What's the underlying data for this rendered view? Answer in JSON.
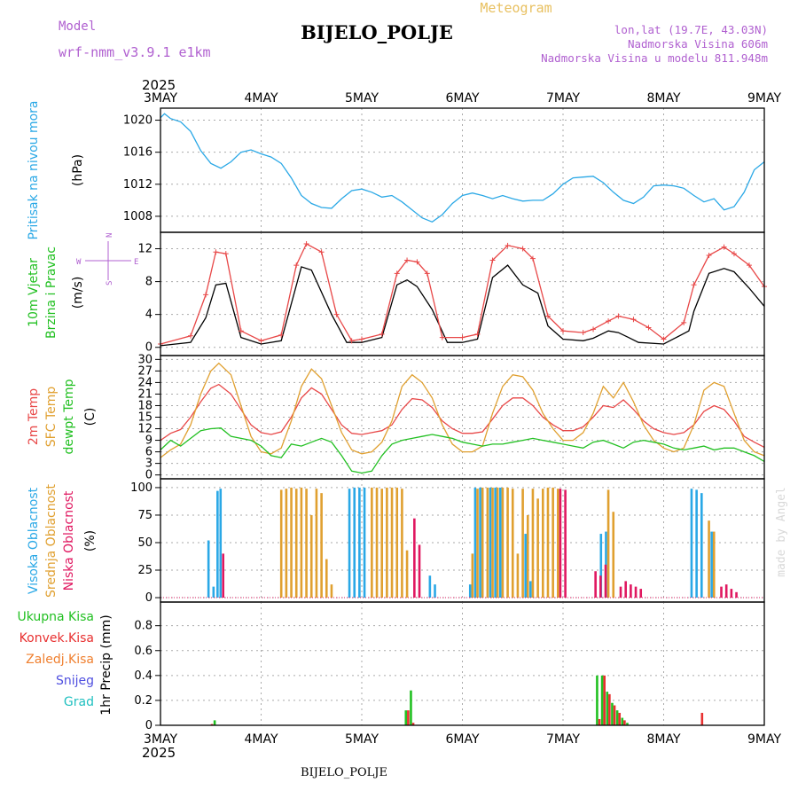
{
  "header": {
    "model_label": "Model",
    "model_name": "wrf-nmm_v3.9.1  e1km",
    "station": "BIJELO_POLJE",
    "meteogram_label": "Meteogram",
    "coords": "lon,lat (19.7E, 43.03N)",
    "elevation": "Nadmorska Visina 606m",
    "model_elevation": "Nadmorska Visina u modelu 811.948m"
  },
  "footer": {
    "station": "BIJELO_POLJE",
    "credit": "made by Angel"
  },
  "time_axis": {
    "year": "2025",
    "labels": [
      "3MAY",
      "4MAY",
      "5MAY",
      "6MAY",
      "7MAY",
      "8MAY",
      "9MAY"
    ],
    "start_day": 3,
    "end_day": 9
  },
  "wind_compass": {
    "w": "W",
    "e": "E",
    "n": "N",
    "s": "S"
  },
  "colors": {
    "pressure": "#2aa8e6",
    "wind_speed": "#000000",
    "wind_gust": "#e84848",
    "temp_2m": "#e84848",
    "temp_sfc": "#e0a030",
    "dewpoint": "#22c022",
    "cloud_high": "#2aa8e6",
    "cloud_mid": "#e0a030",
    "cloud_low": "#e01860",
    "precip_total": "#22c022",
    "precip_conv": "#e83030",
    "precip_frozen": "#f08030",
    "precip_snow": "#5050e0",
    "precip_hail": "#20c0c0"
  },
  "chart_data": [
    {
      "type": "line",
      "panel": "pressure",
      "ylabel_main": "Pritisak na nivou mora",
      "unit": "(hPa)",
      "yticks": [
        1008,
        1012,
        1016,
        1020
      ],
      "ylim": [
        1006,
        1021.5
      ],
      "grid": true,
      "series": [
        {
          "color_key": "pressure",
          "x": [
            3.0,
            3.04,
            3.1,
            3.2,
            3.3,
            3.4,
            3.5,
            3.6,
            3.7,
            3.8,
            3.9,
            4.0,
            4.1,
            4.2,
            4.3,
            4.4,
            4.5,
            4.6,
            4.7,
            4.8,
            4.9,
            5.0,
            5.1,
            5.2,
            5.3,
            5.4,
            5.5,
            5.6,
            5.7,
            5.8,
            5.9,
            6.0,
            6.1,
            6.2,
            6.3,
            6.4,
            6.5,
            6.6,
            6.7,
            6.8,
            6.9,
            7.0,
            7.1,
            7.2,
            7.3,
            7.4,
            7.5,
            7.6,
            7.7,
            7.8,
            7.9,
            8.0,
            8.1,
            8.2,
            8.3,
            8.4,
            8.5,
            8.6,
            8.7,
            8.8,
            8.9,
            9.0
          ],
          "y": [
            1020.3,
            1020.8,
            1020.2,
            1019.8,
            1018.6,
            1016.2,
            1014.6,
            1014.0,
            1014.8,
            1016.0,
            1016.3,
            1015.8,
            1015.4,
            1014.6,
            1012.8,
            1010.6,
            1009.6,
            1009.1,
            1009.0,
            1010.2,
            1011.2,
            1011.4,
            1011.0,
            1010.4,
            1010.6,
            1009.8,
            1008.8,
            1007.8,
            1007.3,
            1008.2,
            1009.6,
            1010.6,
            1010.9,
            1010.6,
            1010.2,
            1010.6,
            1010.2,
            1009.9,
            1010.0,
            1010.0,
            1010.8,
            1012.0,
            1012.8,
            1012.9,
            1013.0,
            1012.2,
            1011.0,
            1010.0,
            1009.6,
            1010.4,
            1011.8,
            1011.9,
            1011.8,
            1011.5,
            1010.6,
            1009.8,
            1010.2,
            1008.8,
            1009.2,
            1011.0,
            1013.8,
            1014.8
          ]
        }
      ]
    },
    {
      "type": "line",
      "panel": "wind",
      "ylabel_main": "10m Vjetar",
      "ylabel_sub": "Brzina i Pravac",
      "unit": "(m/s)",
      "yticks": [
        0,
        4,
        8,
        12
      ],
      "ylim": [
        -1,
        14
      ],
      "grid": true,
      "series": [
        {
          "color_key": "wind_speed",
          "x": [
            3.0,
            3.3,
            3.45,
            3.55,
            3.65,
            3.8,
            4.0,
            4.2,
            4.4,
            4.5,
            4.7,
            4.85,
            5.0,
            5.2,
            5.35,
            5.45,
            5.55,
            5.7,
            5.85,
            6.0,
            6.15,
            6.3,
            6.45,
            6.6,
            6.75,
            6.85,
            7.0,
            7.2,
            7.3,
            7.45,
            7.55,
            7.65,
            7.75,
            8.0,
            8.25,
            8.3,
            8.45,
            8.6,
            8.7,
            8.85,
            9.0
          ],
          "y": [
            0.2,
            0.6,
            3.6,
            7.6,
            7.8,
            1.2,
            0.4,
            0.8,
            9.8,
            9.4,
            4.0,
            0.6,
            0.6,
            1.2,
            7.6,
            8.2,
            7.4,
            4.6,
            0.6,
            0.6,
            1.0,
            8.5,
            10.0,
            7.6,
            6.6,
            2.6,
            1.0,
            0.8,
            1.1,
            2.0,
            1.8,
            1.2,
            0.6,
            0.4,
            2.0,
            4.4,
            9.0,
            9.6,
            9.2,
            7.2,
            5.0
          ]
        },
        {
          "color_key": "wind_gust",
          "x": [
            3.0,
            3.3,
            3.45,
            3.55,
            3.65,
            3.8,
            4.0,
            4.2,
            4.35,
            4.45,
            4.6,
            4.75,
            4.9,
            5.0,
            5.2,
            5.35,
            5.45,
            5.55,
            5.65,
            5.8,
            6.0,
            6.15,
            6.3,
            6.45,
            6.6,
            6.7,
            6.85,
            7.0,
            7.2,
            7.3,
            7.45,
            7.55,
            7.7,
            7.85,
            8.0,
            8.2,
            8.3,
            8.45,
            8.6,
            8.7,
            8.85,
            9.0
          ],
          "y": [
            0.4,
            1.4,
            6.4,
            11.6,
            11.4,
            2.0,
            0.8,
            1.5,
            10.0,
            12.6,
            11.6,
            4.0,
            0.8,
            1.0,
            1.6,
            9.0,
            10.6,
            10.4,
            9.0,
            1.2,
            1.2,
            1.6,
            10.6,
            12.4,
            12.0,
            10.8,
            3.8,
            2.0,
            1.8,
            2.2,
            3.2,
            3.8,
            3.4,
            2.4,
            1.0,
            3.0,
            7.6,
            11.2,
            12.2,
            11.4,
            10.0,
            7.4
          ]
        }
      ]
    },
    {
      "type": "line",
      "panel": "temperature",
      "ylabel_lines": [
        "2m Temp",
        "SFC Temp",
        "dewpt Temp"
      ],
      "unit": "(C)",
      "yticks": [
        0,
        3,
        6,
        9,
        12,
        15,
        18,
        21,
        24,
        27,
        30
      ],
      "ylim": [
        -1,
        31
      ],
      "grid": true,
      "series": [
        {
          "color_key": "temp_2m",
          "x": [
            3.0,
            3.1,
            3.2,
            3.3,
            3.4,
            3.5,
            3.58,
            3.7,
            3.8,
            3.9,
            4.0,
            4.1,
            4.2,
            4.3,
            4.4,
            4.5,
            4.6,
            4.7,
            4.8,
            4.9,
            5.0,
            5.1,
            5.2,
            5.3,
            5.4,
            5.5,
            5.6,
            5.7,
            5.8,
            5.9,
            6.0,
            6.1,
            6.2,
            6.3,
            6.4,
            6.5,
            6.6,
            6.7,
            6.8,
            6.9,
            7.0,
            7.1,
            7.2,
            7.3,
            7.4,
            7.5,
            7.6,
            7.7,
            7.8,
            7.9,
            8.0,
            8.1,
            8.2,
            8.3,
            8.4,
            8.5,
            8.6,
            8.7,
            8.8,
            8.9,
            9.0
          ],
          "y": [
            9.0,
            10.8,
            11.8,
            15.0,
            19.0,
            22.5,
            23.5,
            21.0,
            17.0,
            13.0,
            11.0,
            10.5,
            11.2,
            15.0,
            20.0,
            22.6,
            21.0,
            17.0,
            13.0,
            10.8,
            10.5,
            11.0,
            11.5,
            13.0,
            17.0,
            19.8,
            19.5,
            17.5,
            14.0,
            12.0,
            10.8,
            10.8,
            11.2,
            14.5,
            18.0,
            20.0,
            20.0,
            18.0,
            15.0,
            13.0,
            11.5,
            11.5,
            12.5,
            15.0,
            18.0,
            17.5,
            19.5,
            17.0,
            14.0,
            12.0,
            11.0,
            10.5,
            11.0,
            13.0,
            16.5,
            18.0,
            17.0,
            14.0,
            10.0,
            8.5,
            7.2
          ]
        },
        {
          "color_key": "temp_sfc",
          "x": [
            3.0,
            3.1,
            3.2,
            3.3,
            3.4,
            3.5,
            3.58,
            3.7,
            3.8,
            3.9,
            4.0,
            4.1,
            4.2,
            4.3,
            4.4,
            4.5,
            4.6,
            4.7,
            4.8,
            4.9,
            5.0,
            5.1,
            5.2,
            5.3,
            5.4,
            5.5,
            5.6,
            5.7,
            5.8,
            5.9,
            6.0,
            6.1,
            6.2,
            6.3,
            6.4,
            6.5,
            6.6,
            6.7,
            6.8,
            6.9,
            7.0,
            7.1,
            7.2,
            7.3,
            7.4,
            7.5,
            7.6,
            7.7,
            7.8,
            7.9,
            8.0,
            8.1,
            8.2,
            8.3,
            8.4,
            8.5,
            8.6,
            8.7,
            8.8,
            8.9,
            9.0
          ],
          "y": [
            4.5,
            6.5,
            8.0,
            13.0,
            21.0,
            27.0,
            29.0,
            26.0,
            18.0,
            10.0,
            6.0,
            5.5,
            7.0,
            14.0,
            23.0,
            27.5,
            25.0,
            18.0,
            11.0,
            6.5,
            5.5,
            6.0,
            8.5,
            14.0,
            23.0,
            26.0,
            24.0,
            20.0,
            13.0,
            8.0,
            6.0,
            6.0,
            7.5,
            16.0,
            23.0,
            26.0,
            25.5,
            22.0,
            16.0,
            12.0,
            9.0,
            9.0,
            11.0,
            16.0,
            23.0,
            20.0,
            24.0,
            19.0,
            13.0,
            9.0,
            7.0,
            6.0,
            7.0,
            13.0,
            22.0,
            24.0,
            23.0,
            16.0,
            9.0,
            6.0,
            5.0
          ]
        },
        {
          "color_key": "dewpoint",
          "x": [
            3.0,
            3.1,
            3.2,
            3.3,
            3.4,
            3.5,
            3.6,
            3.7,
            3.8,
            3.9,
            4.0,
            4.1,
            4.2,
            4.3,
            4.4,
            4.5,
            4.6,
            4.7,
            4.8,
            4.9,
            5.0,
            5.1,
            5.2,
            5.3,
            5.4,
            5.5,
            5.6,
            5.7,
            5.8,
            5.9,
            6.0,
            6.1,
            6.2,
            6.3,
            6.4,
            6.5,
            6.6,
            6.7,
            6.8,
            6.9,
            7.0,
            7.1,
            7.2,
            7.3,
            7.4,
            7.5,
            7.6,
            7.7,
            7.8,
            7.9,
            8.0,
            8.1,
            8.2,
            8.3,
            8.4,
            8.5,
            8.6,
            8.7,
            8.8,
            8.9,
            9.0
          ],
          "y": [
            6.5,
            9.0,
            7.5,
            9.5,
            11.5,
            12.0,
            12.2,
            10.0,
            9.5,
            9.0,
            7.5,
            5.0,
            4.5,
            8.0,
            7.5,
            8.5,
            9.5,
            8.5,
            5.0,
            1.0,
            0.5,
            1.0,
            5.0,
            8.0,
            9.0,
            9.5,
            10.0,
            10.5,
            10.0,
            9.5,
            8.5,
            8.0,
            7.5,
            8.0,
            8.0,
            8.5,
            9.0,
            9.5,
            9.0,
            8.5,
            8.0,
            7.5,
            7.0,
            8.5,
            9.0,
            8.0,
            7.0,
            8.5,
            9.0,
            8.5,
            8.0,
            7.0,
            6.5,
            7.0,
            7.5,
            6.5,
            7.0,
            7.0,
            6.0,
            5.0,
            3.5
          ]
        }
      ]
    },
    {
      "type": "bar",
      "panel": "clouds",
      "ylabel_lines": [
        "Visoka Oblacnost",
        "Srednja Oblacnost",
        "Niska Oblacnost"
      ],
      "unit": "(%)",
      "yticks": [
        0,
        25,
        50,
        75,
        100
      ],
      "ylim": [
        -4,
        108
      ],
      "grid": true,
      "series": [
        {
          "color_key": "cloud_high",
          "x": [
            3.5,
            3.55,
            3.59,
            3.62,
            4.9,
            4.95,
            5.0,
            5.05,
            6.65,
            6.7,
            6.1,
            6.15,
            6.2,
            6.3,
            6.35,
            6.4,
            8.3,
            8.35,
            8.4,
            8.5,
            5.7,
            5.75,
            7.4,
            7.45
          ],
          "y": [
            52,
            10,
            97,
            99,
            99,
            100,
            100,
            100,
            58,
            15,
            12,
            100,
            100,
            100,
            100,
            100,
            99,
            98,
            95,
            60,
            20,
            12,
            58,
            60
          ]
        },
        {
          "color_key": "cloud_mid",
          "x": [
            4.2,
            4.25,
            4.3,
            4.35,
            4.4,
            4.45,
            4.5,
            4.55,
            4.6,
            4.65,
            4.7,
            5.1,
            5.15,
            5.2,
            5.25,
            5.3,
            5.35,
            5.4,
            5.45,
            6.1,
            6.15,
            6.2,
            6.25,
            6.3,
            6.35,
            6.4,
            6.45,
            6.5,
            6.55,
            6.6,
            6.65,
            6.7,
            6.75,
            6.8,
            6.85,
            6.9,
            6.95,
            7.45,
            7.5,
            8.45,
            8.5
          ],
          "y": [
            98,
            99,
            100,
            99,
            100,
            99,
            75,
            99,
            95,
            35,
            12,
            100,
            100,
            99,
            100,
            100,
            100,
            99,
            43,
            40,
            99,
            100,
            100,
            100,
            100,
            100,
            100,
            99,
            40,
            99,
            75,
            99,
            90,
            99,
            100,
            100,
            99,
            98,
            78,
            70,
            60
          ]
        },
        {
          "color_key": "cloud_low",
          "x": [
            3.6,
            5.5,
            5.55,
            7.3,
            7.35,
            7.4,
            7.55,
            7.6,
            7.65,
            7.7,
            7.75,
            8.55,
            8.6,
            8.65,
            8.7,
            6.95,
            7.0
          ],
          "y": [
            40,
            72,
            48,
            24,
            20,
            30,
            10,
            15,
            12,
            10,
            8,
            10,
            12,
            8,
            5,
            99,
            98
          ]
        }
      ]
    },
    {
      "type": "bar",
      "panel": "precipitation",
      "ylabel_lines": [
        "Ukupna Kisa",
        "Konvek.Kisa",
        "Zaledj.Kisa",
        "Snijeg",
        "Grad"
      ],
      "unit": "1hr Precip (mm)",
      "yticks": [
        0,
        0.2,
        0.4,
        0.6,
        0.8
      ],
      "ylim": [
        0,
        0.99
      ],
      "grid": true,
      "series": [
        {
          "color_key": "precip_total",
          "x": [
            3.55,
            5.45,
            5.5,
            7.35,
            7.4,
            7.45,
            7.5,
            7.55,
            7.6,
            7.65
          ],
          "y": [
            0.04,
            0.12,
            0.28,
            0.4,
            0.4,
            0.27,
            0.18,
            0.12,
            0.06,
            0.02
          ]
        },
        {
          "color_key": "precip_conv",
          "x": [
            3.5,
            5.45,
            5.5,
            7.35,
            7.4,
            7.45,
            7.5,
            7.55,
            7.6,
            8.37
          ],
          "y": [
            0.01,
            0.12,
            0.02,
            0.05,
            0.4,
            0.25,
            0.16,
            0.1,
            0.04,
            0.1
          ]
        }
      ]
    }
  ]
}
